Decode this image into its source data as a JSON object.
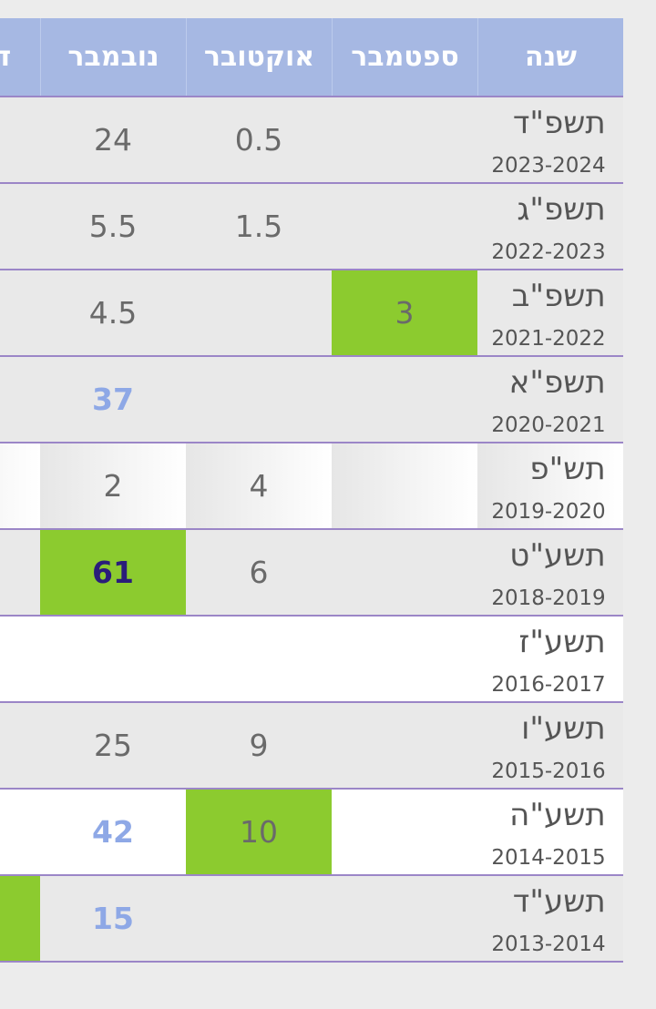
{
  "headers": [
    "שנה",
    "ספטמבר",
    "אוקטובר",
    "נובמבר",
    "דצמבר"
  ],
  "rows": [
    {
      "year": "תשפ\"ד",
      "range": "2023-2024",
      "sep": "",
      "oct": "0.5",
      "nov": "24",
      "dec": ""
    },
    {
      "year": "תשפ\"ג",
      "range": "2022-2023",
      "sep": "",
      "oct": "1.5",
      "nov": "5.5",
      "dec": ""
    },
    {
      "year": "תשפ\"ב",
      "range": "2021-2022",
      "sep": "3",
      "oct": "",
      "nov": "4.5",
      "dec": ""
    },
    {
      "year": "תשפ\"א",
      "range": "2020-2021",
      "sep": "",
      "oct": "",
      "nov": "37",
      "dec": ""
    },
    {
      "year": "תש\"פ",
      "range": "2019-2020",
      "sep": "",
      "oct": "4",
      "nov": "2",
      "dec": ""
    },
    {
      "year": "תשע\"ט",
      "range": "2018-2019",
      "sep": "",
      "oct": "6",
      "nov": "61",
      "dec": ""
    },
    {
      "year": "תשע\"ז",
      "range": "2016-2017",
      "sep": "",
      "oct": "",
      "nov": "",
      "dec": ""
    },
    {
      "year": "תשע\"ו",
      "range": "2015-2016",
      "sep": "",
      "oct": "9",
      "nov": "25",
      "dec": ""
    },
    {
      "year": "תשע\"ה",
      "range": "2014-2015",
      "sep": "",
      "oct": "10",
      "nov": "42",
      "dec": ""
    },
    {
      "year": "תשע\"ד",
      "range": "2013-2014",
      "sep": "",
      "oct": "",
      "nov": "15",
      "dec": ""
    }
  ],
  "colors": {
    "header_bg": "#a6b8e3",
    "highlight_green": "#8ccb2f",
    "value_blue": "#8ea8e6",
    "value_navy": "#2a1d7a",
    "row_divider": "#9b86c7"
  }
}
